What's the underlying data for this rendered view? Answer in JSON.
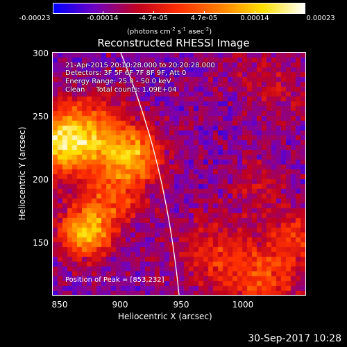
{
  "colorbar": {
    "ticks": [
      "-0.00023",
      "-0.00014",
      "-4.7e-05",
      "4.7e-05",
      "0.00014",
      "0.00023"
    ],
    "units_prefix": "(photons cm",
    "units_exp1": "-2",
    "units_mid": " s",
    "units_exp2": "-1",
    "units_mid2": " asec",
    "units_exp3": "-2",
    "units_suffix": ")",
    "colors": [
      "#0000ff",
      "#7000c0",
      "#c00020",
      "#ff3000",
      "#ff8000",
      "#ffe000",
      "#ffffff"
    ]
  },
  "title": "Reconstructed RHESSI Image",
  "info": {
    "time": "21-Apr-2015 20:10:28.000 to 20:20:28.000",
    "detectors": "Detectors: 3F 5F 6F 7F 8F 9F, Att 0",
    "energy": "Energy Range: 25.0 - 50.0 keV",
    "clean": "Clean     Total counts: 1.09E+04"
  },
  "peak": "Position of Peak = [853,232]",
  "axes": {
    "xlabel": "Heliocentric X (arcsec)",
    "ylabel": "Heliocentric Y (arcsec)",
    "xticks": [
      "850",
      "900",
      "950",
      "1000"
    ],
    "yticks": [
      "300",
      "250",
      "200",
      "150"
    ]
  },
  "timestamp": "30-Sep-2017 10:28"
}
